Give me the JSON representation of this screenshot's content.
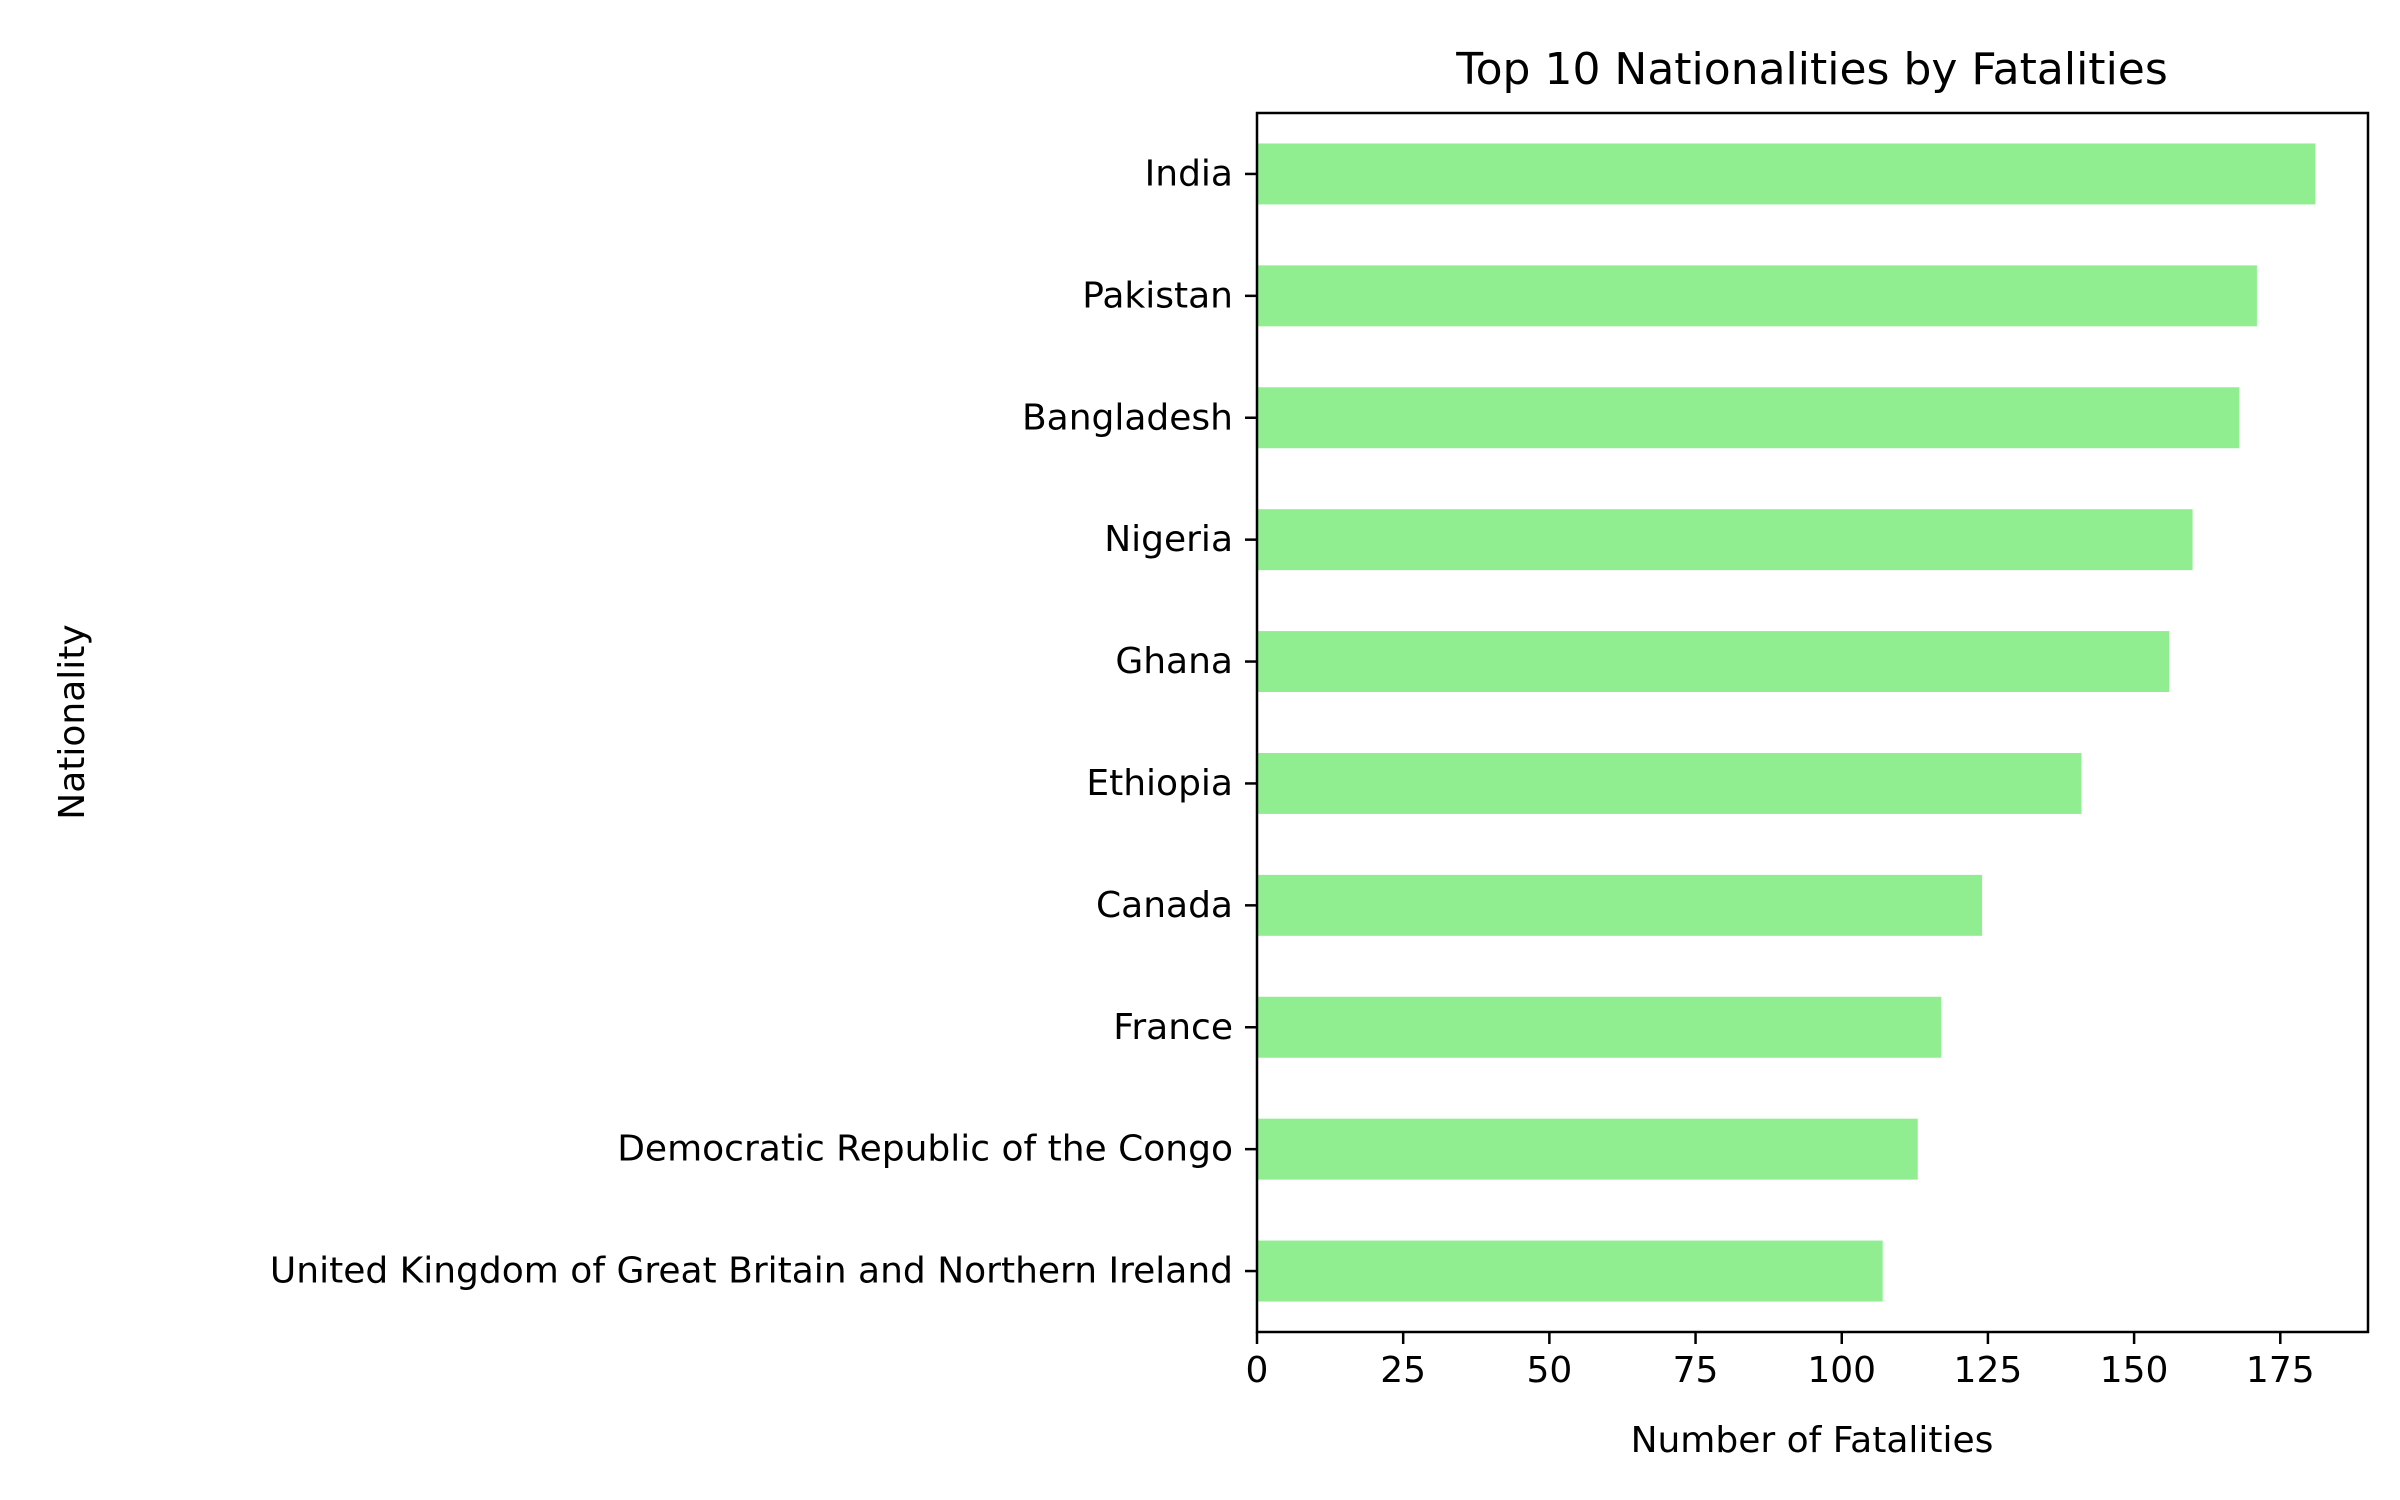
{
  "chart_data": {
    "type": "bar",
    "orientation": "horizontal",
    "title": "Top 10 Nationalities by Fatalities",
    "xlabel": "Number of Fatalities",
    "ylabel": "Nationality",
    "categories": [
      "India",
      "Pakistan",
      "Bangladesh",
      "Nigeria",
      "Ghana",
      "Ethiopia",
      "Canada",
      "France",
      "Democratic Republic of the Congo",
      "United Kingdom of Great Britain and Northern Ireland"
    ],
    "values": [
      181,
      171,
      168,
      160,
      156,
      141,
      124,
      117,
      113,
      107
    ],
    "xlim": [
      0,
      190
    ],
    "xticks": [
      0,
      25,
      50,
      75,
      100,
      125,
      150,
      175
    ],
    "grid": false,
    "legend": "none",
    "bar_color": "#90ee90"
  }
}
